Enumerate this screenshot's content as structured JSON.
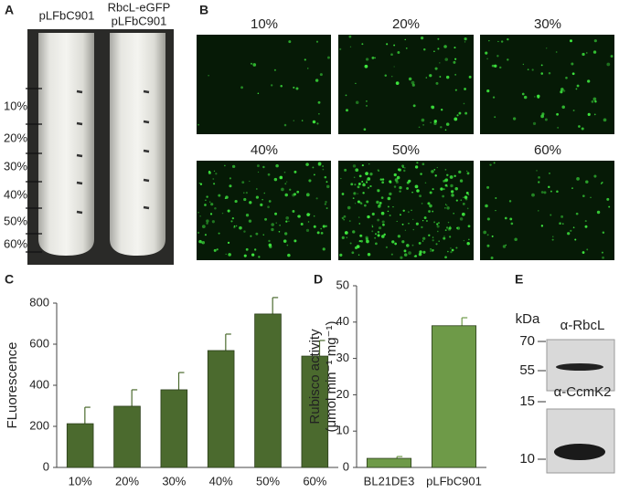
{
  "panel_labels": [
    "A",
    "B",
    "C",
    "D",
    "E"
  ],
  "tube_labels": [
    "pLFbC901",
    "RbcL-eGFP",
    "pLFbC901"
  ],
  "fractions": [
    "10%",
    "20%",
    "30%",
    "40%",
    "50%",
    "60%"
  ],
  "micrographs": [
    "10%",
    "20%",
    "30%",
    "40%",
    "50%",
    "60%"
  ],
  "chart_data": [
    {
      "type": "bar",
      "ylabel": "FLuorescence",
      "categories": [
        "10%",
        "20%",
        "30%",
        "40%",
        "50%",
        "60%"
      ],
      "values": [
        213,
        298,
        378,
        569,
        747,
        542
      ],
      "errors": [
        80,
        80,
        84,
        80,
        80,
        76
      ],
      "color": "#4b6a2e",
      "ylim": [
        0,
        800
      ],
      "yticks": [
        0,
        200,
        400,
        600,
        800
      ]
    },
    {
      "type": "bar",
      "ylabel": [
        "Rubisco activity",
        "(μmol min⁻¹ mg⁻¹)"
      ],
      "categories": [
        "BL21DE3",
        "pLFbC901"
      ],
      "values": [
        2.5,
        39
      ],
      "errors": [
        0.5,
        2.2
      ],
      "color": "#6e9a48",
      "ylim": [
        0,
        50
      ],
      "yticks": [
        0,
        10,
        20,
        30,
        40,
        50
      ]
    }
  ],
  "blot": {
    "unit": "kDa",
    "panels": [
      {
        "antibody": "α-RbcL",
        "markers": [
          70,
          55
        ]
      },
      {
        "antibody": "α-CcmK2",
        "markers": [
          15,
          10
        ]
      }
    ]
  }
}
